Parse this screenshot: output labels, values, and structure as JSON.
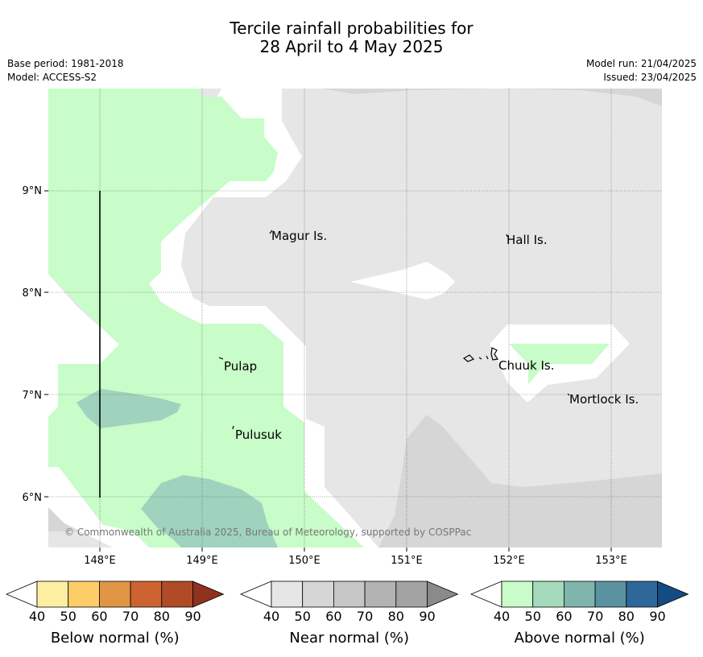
{
  "title": {
    "line1": "Tercile rainfall probabilities for",
    "line2": "28 April to 4 May 2025"
  },
  "meta": {
    "base_period": "Base period: 1981-2018",
    "model": "Model: ACCESS-S2",
    "model_run": "Model run: 21/04/2025",
    "issued": "Issued: 23/04/2025"
  },
  "map": {
    "lon_range": [
      147.5,
      153.5
    ],
    "lat_range": [
      5.5,
      10.0
    ],
    "lon_ticks": [
      "148°E",
      "149°E",
      "150°E",
      "151°E",
      "152°E",
      "153°E"
    ],
    "lat_ticks": [
      "9°N",
      "8°N",
      "7°N",
      "6°N"
    ],
    "places": [
      "Magur Is.",
      "Hall Is.",
      "Pulap",
      "Chuuk Is.",
      "Mortlock Is.",
      "Pulusuk"
    ],
    "copyright": "© Commonwealth of Australia 2025, Bureau of Meteorology, supported by COSPPac"
  },
  "legend": {
    "ticks": [
      "40",
      "50",
      "60",
      "70",
      "80",
      "90"
    ],
    "below": {
      "label": "Below normal (%)",
      "colors": [
        "#fdeea1",
        "#fdcd68",
        "#e09544",
        "#cc6331",
        "#b14a27",
        "#8f321f"
      ]
    },
    "near": {
      "label": "Near normal (%)",
      "colors": [
        "#e6e6e6",
        "#d6d6d6",
        "#c6c6c6",
        "#b3b3b3",
        "#a3a3a3",
        "#8a8a8a"
      ]
    },
    "above": {
      "label": "Above normal (%)",
      "colors": [
        "#c8fcc8",
        "#a5d9bb",
        "#7fb5ad",
        "#5b92a2",
        "#2e6799",
        "#134c82"
      ]
    }
  },
  "colors": {
    "near_40": "#e6e6e6",
    "near_50": "#d6d6d6",
    "above_40": "#c8fcc8",
    "above_50": "#9fd3be"
  }
}
